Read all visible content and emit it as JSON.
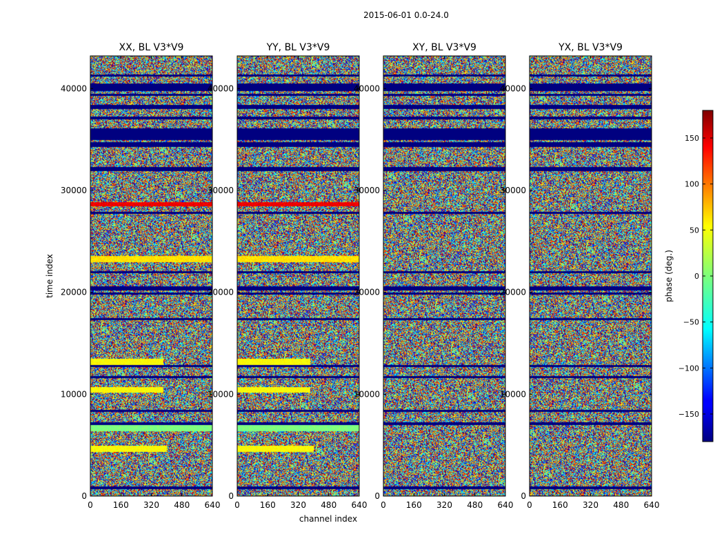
{
  "chart_data": {
    "type": "heatmap",
    "suptitle": "2015-06-01 0.0-24.0",
    "xlabel": "channel index",
    "ylabel": "time index",
    "xlim": [
      0,
      640
    ],
    "ylim": [
      0,
      43200
    ],
    "xticks": [
      0,
      160,
      320,
      480,
      640
    ],
    "yticks": [
      0,
      10000,
      20000,
      30000,
      40000
    ],
    "panels": [
      {
        "title": "XX, BL V3*V9",
        "pol": "XX"
      },
      {
        "title": "YY, BL V3*V9",
        "pol": "YY"
      },
      {
        "title": "XY, BL V3*V9",
        "pol": "XY"
      },
      {
        "title": "YX, BL V3*V9",
        "pol": "YX"
      }
    ],
    "colorbar": {
      "label": "phase (deg.)",
      "vmin": -180,
      "vmax": 180,
      "ticks": [
        -150,
        -100,
        -50,
        0,
        50,
        100,
        150
      ],
      "tick_labels": [
        "−150",
        "−100",
        "−50",
        "0",
        "50",
        "100",
        "150"
      ],
      "colormap": "jet"
    },
    "flagged_bands_time": [
      [
        700,
        1000
      ],
      [
        7000,
        7300
      ],
      [
        8300,
        8500
      ],
      [
        11600,
        11800
      ],
      [
        12700,
        12900
      ],
      [
        17300,
        17500
      ],
      [
        19800,
        20000
      ],
      [
        20200,
        20600
      ],
      [
        21900,
        22100
      ],
      [
        27700,
        27900
      ],
      [
        31900,
        32300
      ],
      [
        34300,
        34800
      ],
      [
        35000,
        36100
      ],
      [
        37000,
        37300
      ],
      [
        38000,
        38400
      ],
      [
        39300,
        39500
      ],
      [
        39800,
        40500
      ],
      [
        41200,
        41400
      ]
    ],
    "coherent_bands_time": [
      {
        "t": [
          4400,
          5000
        ],
        "ch": [
          0,
          400
        ],
        "phase_deg": 45
      },
      {
        "t": [
          6400,
          7000
        ],
        "ch": [
          0,
          640
        ],
        "phase_deg": 0
      },
      {
        "t": [
          10200,
          10700
        ],
        "ch": [
          0,
          380
        ],
        "phase_deg": 45
      },
      {
        "t": [
          12900,
          13500
        ],
        "ch": [
          0,
          380
        ],
        "phase_deg": 45
      },
      {
        "t": [
          23000,
          23600
        ],
        "ch": [
          0,
          640
        ],
        "phase_deg": 55
      },
      {
        "t": [
          28500,
          28900
        ],
        "ch": [
          0,
          640
        ],
        "phase_deg": 140
      }
    ]
  }
}
